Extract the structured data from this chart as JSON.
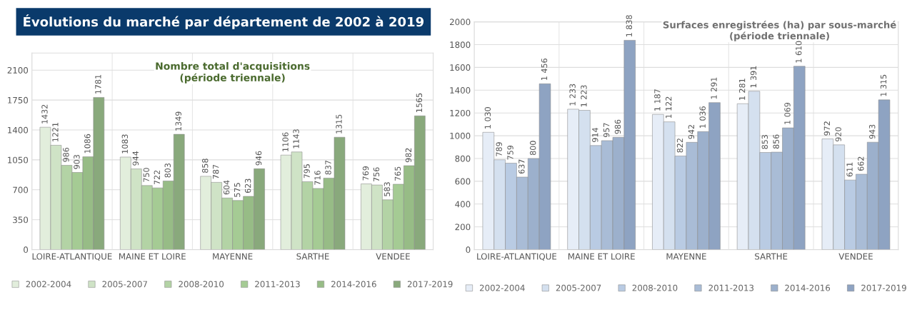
{
  "chart_data": [
    {
      "type": "bar",
      "title": "Évolutions du marché par département de 2002 à 2019",
      "subtitle": "Nombre total d'acquisitions\n(période triennale)",
      "categories": [
        "LOIRE-ATLANTIQUE",
        "MAINE ET LOIRE",
        "MAYENNE",
        "SARTHE",
        "VENDEE"
      ],
      "series": [
        {
          "name": "2002-2004",
          "color": "#e2eedc",
          "values": [
            1432,
            1083,
            858,
            1106,
            769
          ]
        },
        {
          "name": "2005-2007",
          "color": "#cfe3c6",
          "values": [
            1221,
            944,
            787,
            1143,
            756
          ]
        },
        {
          "name": "2008-2010",
          "color": "#b3d3a5",
          "values": [
            986,
            750,
            604,
            795,
            583
          ]
        },
        {
          "name": "2011-2013",
          "color": "#a5cb94",
          "values": [
            903,
            722,
            575,
            716,
            765
          ]
        },
        {
          "name": "2014-2016",
          "color": "#97bc86",
          "values": [
            1086,
            803,
            623,
            837,
            982
          ]
        },
        {
          "name": "2017-2019",
          "color": "#89a97c",
          "values": [
            1781,
            1349,
            946,
            1315,
            1565
          ]
        }
      ],
      "ylim": [
        0,
        2300
      ],
      "yticks": [
        0,
        350,
        700,
        1050,
        1400,
        1750,
        2100
      ],
      "grid": "y",
      "legend": "bottom",
      "data_labels": true
    },
    {
      "type": "bar",
      "title": "Surfaces enregistrées (ha) par sous-marché\n(période triennale)",
      "categories": [
        "LOIRE-ATLANTIQUE",
        "MAINE ET LOIRE",
        "MAYENNE",
        "SARTHE",
        "VENDEE"
      ],
      "series": [
        {
          "name": "2002-2004",
          "color": "#e6edf7",
          "values": [
            1030,
            1233,
            1187,
            1281,
            972
          ],
          "value_labels": [
            "1 030",
            "1 233",
            "1 187",
            "1 281",
            "972"
          ]
        },
        {
          "name": "2005-2007",
          "color": "#d4e0ef",
          "values": [
            789,
            1223,
            1122,
            1391,
            920
          ],
          "value_labels": [
            "789",
            "1 223",
            "1 122",
            "1 391",
            "920"
          ]
        },
        {
          "name": "2008-2010",
          "color": "#b9cbe3",
          "values": [
            759,
            914,
            822,
            853,
            611
          ],
          "value_labels": [
            "759",
            "914",
            "822",
            "853",
            "611"
          ]
        },
        {
          "name": "2011-2013",
          "color": "#a9bcd6",
          "values": [
            637,
            957,
            942,
            856,
            662
          ],
          "value_labels": [
            "637",
            "957",
            "942",
            "856",
            "662"
          ]
        },
        {
          "name": "2014-2016",
          "color": "#9cb0cc",
          "values": [
            800,
            986,
            1036,
            1069,
            943
          ],
          "value_labels": [
            "800",
            "986",
            "1 036",
            "1 069",
            "943"
          ]
        },
        {
          "name": "2017-2019",
          "color": "#8ea3c2",
          "values": [
            1456,
            1838,
            1291,
            1610,
            1315
          ],
          "value_labels": [
            "1 456",
            "1 838",
            "1 291",
            "1 610",
            "1 315"
          ]
        }
      ],
      "ylim": [
        0,
        2000
      ],
      "yticks": [
        0,
        200,
        400,
        600,
        800,
        1000,
        1200,
        1400,
        1600,
        1800,
        2000
      ],
      "grid": "y",
      "legend": "bottom"
    }
  ]
}
